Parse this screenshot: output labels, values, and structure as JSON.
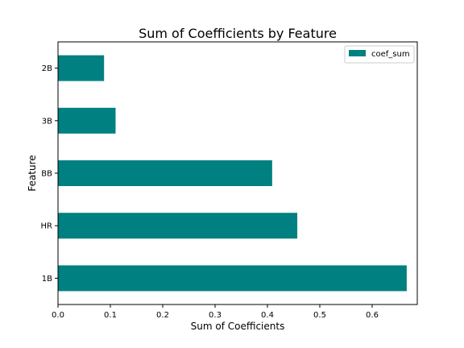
{
  "chart_data": {
    "type": "bar",
    "orientation": "horizontal",
    "title": "Sum of Coefficients by Feature",
    "xlabel": "Sum of Coefficients",
    "ylabel": "Feature",
    "categories": [
      "1B",
      "HR",
      "BB",
      "3B",
      "2B"
    ],
    "series": [
      {
        "name": "coef_sum",
        "values": [
          0.666,
          0.457,
          0.409,
          0.11,
          0.088
        ],
        "color": "#008080"
      }
    ],
    "xlim": [
      0,
      0.7
    ],
    "xticks": [
      "0.0",
      "0.1",
      "0.2",
      "0.3",
      "0.4",
      "0.5",
      "0.6"
    ],
    "grid": false,
    "legend_position": "top-right"
  }
}
